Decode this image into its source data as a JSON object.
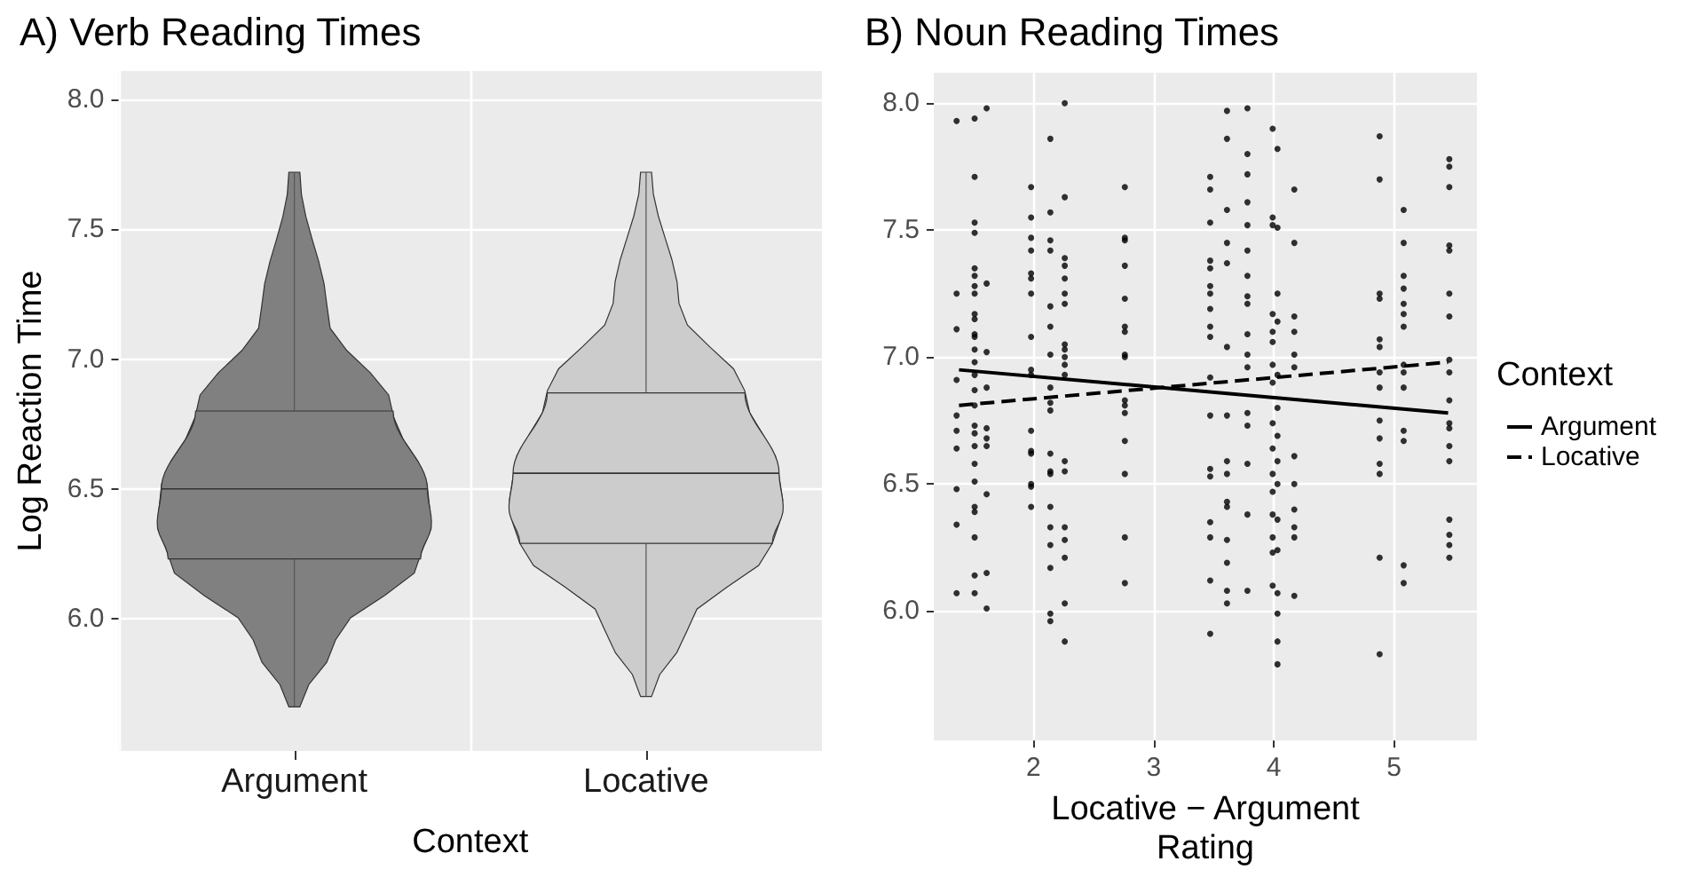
{
  "chart_data": [
    {
      "type": "box",
      "title": "A) Verb Reading Times",
      "xlabel": "Context",
      "ylabel": "Log Reaction Time",
      "categories": [
        "Argument",
        "Locative"
      ],
      "colors": [
        "#808080",
        "#cccccc"
      ],
      "boxes": [
        {
          "low": 5.66,
          "q1": 6.23,
          "median": 6.5,
          "q3": 6.8,
          "high": 7.72
        },
        {
          "low": 5.7,
          "q1": 6.29,
          "median": 6.56,
          "q3": 6.87,
          "high": 7.72
        }
      ],
      "ylim": [
        5.49,
        8.11
      ],
      "yticks": [
        {
          "value": 6,
          "label": "6.0"
        },
        {
          "value": 6.5,
          "label": "6.5"
        },
        {
          "value": 7,
          "label": "7.0"
        },
        {
          "value": 7.5,
          "label": "7.5"
        },
        {
          "value": 8,
          "label": "8.0"
        }
      ],
      "grid": true
    },
    {
      "type": "scatter",
      "title": "B) Noun Reading Times",
      "xlabel": "Locative − Argument Rating",
      "legend": "right",
      "legend_title": "Context",
      "grid": true,
      "xlim": [
        1.17,
        5.69
      ],
      "xticks": [
        2,
        3,
        4,
        5
      ],
      "ylim": [
        5.49,
        8.12
      ],
      "yticks": [
        {
          "value": 6,
          "label": "6.0"
        },
        {
          "value": 6.5,
          "label": "6.5"
        },
        {
          "value": 7,
          "label": "7.0"
        },
        {
          "value": 7.5,
          "label": "7.5"
        },
        {
          "value": 8,
          "label": "8.0"
        }
      ],
      "series": [
        {
          "type": "scatter",
          "color": "#000000",
          "marker": "circle",
          "x": [
            1.36,
            1.36,
            1.36,
            1.36,
            1.36,
            1.36,
            1.36,
            1.36,
            1.36,
            1.36,
            1.51,
            1.51,
            1.51,
            1.51,
            1.51,
            1.51,
            1.51,
            1.51,
            1.51,
            1.51,
            1.51,
            1.51,
            1.51,
            1.51,
            1.51,
            1.51,
            1.51,
            1.51,
            1.51,
            1.51,
            1.51,
            1.51,
            1.51,
            1.51,
            1.51,
            1.51,
            1.51,
            1.61,
            1.61,
            1.61,
            1.61,
            1.61,
            1.61,
            1.61,
            1.61,
            1.61,
            1.61,
            1.98,
            1.98,
            1.98,
            1.98,
            1.98,
            1.98,
            1.98,
            1.98,
            1.98,
            1.98,
            1.98,
            1.98,
            1.98,
            1.98,
            1.98,
            1.98,
            2.14,
            2.14,
            2.14,
            2.14,
            2.14,
            2.14,
            2.14,
            2.14,
            2.14,
            2.14,
            2.14,
            2.14,
            2.14,
            2.14,
            2.14,
            2.14,
            2.14,
            2.14,
            2.14,
            2.26,
            2.26,
            2.26,
            2.26,
            2.26,
            2.26,
            2.26,
            2.26,
            2.26,
            2.26,
            2.26,
            2.26,
            2.26,
            2.26,
            2.26,
            2.26,
            2.26,
            2.26,
            2.26,
            2.76,
            2.76,
            2.76,
            2.76,
            2.76,
            2.76,
            2.76,
            2.76,
            2.76,
            2.76,
            2.76,
            2.76,
            2.76,
            2.76,
            2.76,
            2.76,
            3.47,
            3.47,
            3.47,
            3.47,
            3.47,
            3.47,
            3.47,
            3.47,
            3.47,
            3.47,
            3.47,
            3.47,
            3.47,
            3.47,
            3.47,
            3.47,
            3.47,
            3.47,
            3.61,
            3.61,
            3.61,
            3.61,
            3.61,
            3.61,
            3.61,
            3.61,
            3.61,
            3.61,
            3.61,
            3.61,
            3.61,
            3.61,
            3.61,
            3.78,
            3.78,
            3.78,
            3.78,
            3.78,
            3.78,
            3.78,
            3.78,
            3.78,
            3.78,
            3.78,
            3.78,
            3.78,
            3.78,
            3.78,
            3.78,
            3.78,
            3.99,
            3.99,
            3.99,
            3.99,
            3.99,
            3.99,
            3.99,
            3.99,
            3.99,
            3.99,
            3.99,
            3.99,
            3.99,
            3.99,
            3.99,
            3.99,
            4.03,
            4.03,
            4.03,
            4.03,
            4.03,
            4.03,
            4.03,
            4.03,
            4.03,
            4.03,
            4.03,
            4.03,
            4.03,
            4.03,
            4.03,
            4.17,
            4.17,
            4.17,
            4.17,
            4.17,
            4.17,
            4.17,
            4.17,
            4.17,
            4.17,
            4.17,
            4.17,
            4.88,
            4.88,
            4.88,
            4.88,
            4.88,
            4.88,
            4.88,
            4.88,
            4.88,
            4.88,
            4.88,
            4.88,
            4.88,
            4.88,
            5.08,
            5.08,
            5.08,
            5.08,
            5.08,
            5.08,
            5.08,
            5.08,
            5.08,
            5.08,
            5.08,
            5.08,
            5.08,
            5.08,
            5.46,
            5.46,
            5.46,
            5.46,
            5.46,
            5.46,
            5.46,
            5.46,
            5.46,
            5.46,
            5.46,
            5.46,
            5.46,
            5.46,
            5.46,
            5.46,
            5.46,
            5.46
          ],
          "values": [
            7.93,
            7.25,
            7.11,
            6.91,
            6.77,
            6.71,
            6.64,
            6.48,
            6.34,
            6.07,
            7.94,
            7.71,
            7.53,
            7.49,
            7.35,
            7.32,
            7.28,
            7.25,
            7.17,
            7.15,
            7.09,
            7.08,
            7.03,
            6.98,
            6.93,
            6.87,
            6.81,
            6.73,
            6.7,
            6.65,
            6.58,
            6.51,
            6.41,
            6.39,
            6.29,
            6.14,
            6.07,
            7.98,
            7.29,
            7.02,
            6.88,
            6.72,
            6.68,
            6.65,
            6.46,
            6.15,
            6.01,
            7.67,
            7.55,
            7.47,
            7.42,
            7.33,
            7.31,
            7.25,
            7.08,
            6.95,
            6.93,
            6.71,
            6.63,
            6.62,
            6.5,
            6.49,
            6.41,
            7.86,
            7.57,
            7.46,
            7.42,
            7.2,
            7.12,
            7.01,
            6.88,
            6.82,
            6.79,
            6.62,
            6.55,
            6.54,
            6.41,
            6.33,
            6.26,
            6.17,
            5.99,
            5.96,
            8.0,
            7.63,
            7.39,
            7.36,
            7.31,
            7.25,
            7.21,
            7.05,
            7.03,
            7.0,
            6.97,
            6.93,
            6.59,
            6.55,
            6.33,
            6.28,
            6.21,
            6.03,
            5.88,
            7.67,
            7.47,
            7.46,
            7.36,
            7.23,
            7.12,
            7.1,
            7.01,
            7.0,
            6.83,
            6.81,
            6.78,
            6.67,
            6.54,
            6.29,
            6.11,
            7.71,
            7.66,
            7.53,
            7.38,
            7.35,
            7.28,
            7.25,
            7.19,
            7.12,
            7.08,
            6.92,
            6.77,
            6.56,
            6.53,
            6.35,
            6.29,
            6.12,
            5.91,
            7.97,
            7.86,
            7.58,
            7.45,
            7.37,
            7.04,
            6.77,
            6.59,
            6.54,
            6.43,
            6.41,
            6.28,
            6.19,
            6.08,
            6.03,
            7.98,
            7.8,
            7.72,
            7.61,
            7.52,
            7.42,
            7.32,
            7.24,
            7.21,
            7.09,
            7.01,
            6.96,
            6.78,
            6.73,
            6.58,
            6.38,
            6.08,
            7.9,
            7.55,
            7.52,
            7.17,
            7.1,
            7.06,
            6.97,
            6.9,
            6.74,
            6.64,
            6.54,
            6.47,
            6.38,
            6.29,
            6.23,
            6.1,
            7.82,
            7.51,
            7.25,
            7.14,
            6.93,
            6.8,
            6.69,
            6.59,
            6.5,
            6.36,
            6.24,
            6.07,
            5.99,
            5.88,
            5.79,
            7.66,
            7.45,
            7.16,
            7.1,
            7.01,
            6.96,
            6.61,
            6.5,
            6.4,
            6.33,
            6.29,
            6.06,
            7.87,
            7.7,
            7.25,
            7.23,
            7.07,
            7.04,
            6.94,
            6.88,
            6.75,
            6.68,
            6.58,
            6.54,
            6.21,
            5.83,
            7.58,
            7.45,
            7.32,
            7.27,
            7.21,
            7.17,
            7.12,
            6.97,
            6.94,
            6.88,
            6.71,
            6.67,
            6.18,
            6.11,
            7.78,
            7.75,
            7.67,
            7.44,
            7.42,
            7.25,
            7.16,
            6.99,
            6.94,
            6.83,
            6.74,
            6.72,
            6.65,
            6.59,
            6.36,
            6.3,
            6.26,
            6.21
          ]
        },
        {
          "type": "line",
          "name": "Argument",
          "color": "#000000",
          "marker": "none",
          "line_style": "solid",
          "x": [
            1.38,
            5.45
          ],
          "values": [
            6.95,
            6.78
          ]
        },
        {
          "type": "line",
          "name": "Locative",
          "color": "#000000",
          "marker": "none",
          "line_style": "dashed",
          "x": [
            1.38,
            5.45
          ],
          "values": [
            6.81,
            6.98
          ]
        }
      ]
    }
  ]
}
